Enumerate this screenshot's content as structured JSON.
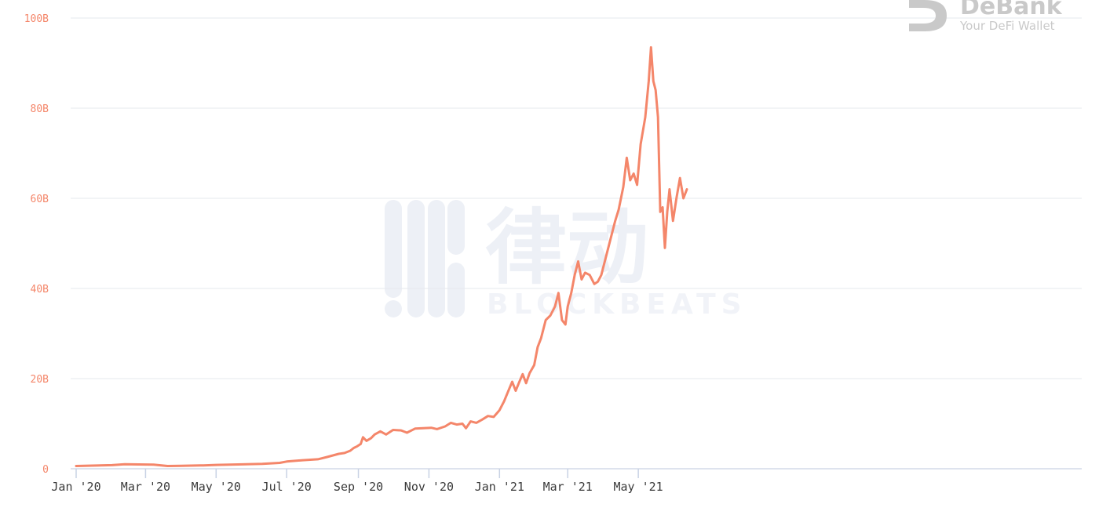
{
  "watermark": {
    "text_cn": "律动",
    "text_en": "BLOCKBEATS"
  },
  "brand": {
    "name": "DeBank",
    "tagline": "Your DeFi Wallet"
  },
  "chart_data": {
    "type": "area",
    "title": "",
    "xlabel": "",
    "ylabel": "",
    "ylim": [
      0,
      100
    ],
    "y_unit": "B",
    "y_ticks": [
      {
        "value": 0,
        "label": "0"
      },
      {
        "value": 20,
        "label": "20B"
      },
      {
        "value": 40,
        "label": "40B"
      },
      {
        "value": 60,
        "label": "60B"
      },
      {
        "value": 80,
        "label": "80B"
      },
      {
        "value": 100,
        "label": "100B"
      }
    ],
    "x_ticks": [
      "Jan '20",
      "Mar '20",
      "May '20",
      "Jul '20",
      "Sep '20",
      "Nov '20",
      "Jan '21",
      "Mar '21",
      "May '21"
    ],
    "x_range": [
      "2020-01-01",
      "2021-06-12"
    ],
    "grid": true,
    "color": "#f4866a",
    "series": [
      {
        "values": [
          [
            "2020-01-01",
            0.6
          ],
          [
            "2020-01-15",
            0.7
          ],
          [
            "2020-02-01",
            0.8
          ],
          [
            "2020-02-12",
            1.0
          ],
          [
            "2020-02-24",
            0.95
          ],
          [
            "2020-03-08",
            0.9
          ],
          [
            "2020-03-20",
            0.6
          ],
          [
            "2020-04-01",
            0.65
          ],
          [
            "2020-04-20",
            0.75
          ],
          [
            "2020-05-01",
            0.85
          ],
          [
            "2020-05-20",
            0.95
          ],
          [
            "2020-06-10",
            1.1
          ],
          [
            "2020-06-25",
            1.3
          ],
          [
            "2020-07-01",
            1.6
          ],
          [
            "2020-07-15",
            1.9
          ],
          [
            "2020-07-28",
            2.1
          ],
          [
            "2020-08-05",
            2.6
          ],
          [
            "2020-08-15",
            3.3
          ],
          [
            "2020-08-20",
            3.5
          ],
          [
            "2020-08-25",
            4.0
          ],
          [
            "2020-08-28",
            4.6
          ],
          [
            "2020-08-31",
            5.0
          ],
          [
            "2020-09-03",
            5.5
          ],
          [
            "2020-09-05",
            7.0
          ],
          [
            "2020-09-08",
            6.2
          ],
          [
            "2020-09-12",
            6.8
          ],
          [
            "2020-09-15",
            7.6
          ],
          [
            "2020-09-20",
            8.3
          ],
          [
            "2020-09-25",
            7.6
          ],
          [
            "2020-10-01",
            8.6
          ],
          [
            "2020-10-08",
            8.5
          ],
          [
            "2020-10-13",
            8.0
          ],
          [
            "2020-10-20",
            8.9
          ],
          [
            "2020-10-27",
            9.0
          ],
          [
            "2020-11-03",
            9.1
          ],
          [
            "2020-11-08",
            8.8
          ],
          [
            "2020-11-15",
            9.4
          ],
          [
            "2020-11-20",
            10.2
          ],
          [
            "2020-11-25",
            9.8
          ],
          [
            "2020-11-30",
            10.0
          ],
          [
            "2020-12-03",
            9.0
          ],
          [
            "2020-12-07",
            10.5
          ],
          [
            "2020-12-12",
            10.2
          ],
          [
            "2020-12-17",
            10.9
          ],
          [
            "2020-12-22",
            11.7
          ],
          [
            "2020-12-27",
            11.5
          ],
          [
            "2021-01-01",
            13.0
          ],
          [
            "2021-01-05",
            15.0
          ],
          [
            "2021-01-09",
            17.5
          ],
          [
            "2021-01-12",
            19.3
          ],
          [
            "2021-01-15",
            17.3
          ],
          [
            "2021-01-18",
            19.2
          ],
          [
            "2021-01-21",
            21.0
          ],
          [
            "2021-01-24",
            19.0
          ],
          [
            "2021-01-27",
            21.2
          ],
          [
            "2021-01-31",
            23.0
          ],
          [
            "2021-02-03",
            27.0
          ],
          [
            "2021-02-06",
            29.0
          ],
          [
            "2021-02-10",
            33.0
          ],
          [
            "2021-02-14",
            34.0
          ],
          [
            "2021-02-18",
            36.0
          ],
          [
            "2021-02-21",
            39.0
          ],
          [
            "2021-02-24",
            33.0
          ],
          [
            "2021-02-27",
            32.0
          ],
          [
            "2021-03-01",
            36.0
          ],
          [
            "2021-03-04",
            39.0
          ],
          [
            "2021-03-07",
            43.0
          ],
          [
            "2021-03-10",
            46.0
          ],
          [
            "2021-03-13",
            42.0
          ],
          [
            "2021-03-16",
            43.5
          ],
          [
            "2021-03-20",
            43.0
          ],
          [
            "2021-03-24",
            41.0
          ],
          [
            "2021-03-27",
            41.5
          ],
          [
            "2021-03-30",
            43.0
          ],
          [
            "2021-04-03",
            47.0
          ],
          [
            "2021-04-07",
            51.0
          ],
          [
            "2021-04-11",
            55.0
          ],
          [
            "2021-04-14",
            57.5
          ],
          [
            "2021-04-18",
            62.5
          ],
          [
            "2021-04-21",
            69.0
          ],
          [
            "2021-04-24",
            64.0
          ],
          [
            "2021-04-27",
            65.5
          ],
          [
            "2021-04-30",
            63.0
          ],
          [
            "2021-05-03",
            72.0
          ],
          [
            "2021-05-07",
            78.0
          ],
          [
            "2021-05-10",
            86.0
          ],
          [
            "2021-05-12",
            93.5
          ],
          [
            "2021-05-14",
            86.0
          ],
          [
            "2021-05-16",
            84.0
          ],
          [
            "2021-05-18",
            78.0
          ],
          [
            "2021-05-20",
            57.0
          ],
          [
            "2021-05-22",
            58.0
          ],
          [
            "2021-05-24",
            49.0
          ],
          [
            "2021-05-26",
            57.0
          ],
          [
            "2021-05-28",
            62.0
          ],
          [
            "2021-05-31",
            55.0
          ],
          [
            "2021-06-03",
            60.0
          ],
          [
            "2021-06-06",
            64.5
          ],
          [
            "2021-06-09",
            60.0
          ],
          [
            "2021-06-12",
            62.0
          ]
        ]
      }
    ]
  }
}
